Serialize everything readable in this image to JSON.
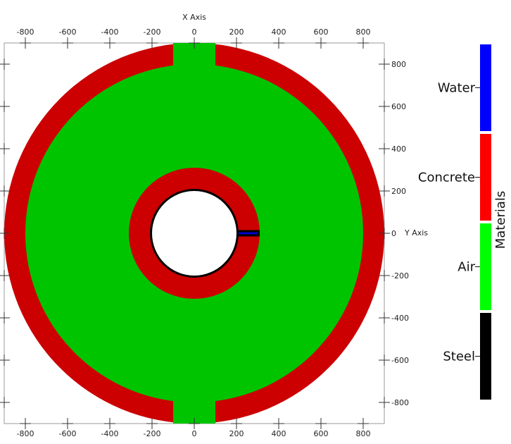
{
  "axes": {
    "x_title": "X Axis",
    "y_title": "Y Axis",
    "x_ticks": [
      -800,
      -600,
      -400,
      -200,
      0,
      200,
      400,
      600,
      800
    ],
    "y_ticks": [
      800,
      600,
      400,
      200,
      0,
      -200,
      -400,
      -600,
      -800
    ],
    "x_tick_labels": [
      "-800",
      "-600",
      "-400",
      "-200",
      "0",
      "200",
      "400",
      "600",
      "800"
    ],
    "y_tick_labels": [
      "800",
      "600",
      "400",
      "200",
      "0",
      "-200",
      "-400",
      "-600",
      "-800"
    ],
    "x_range": [
      -900,
      900
    ],
    "y_range": [
      -900,
      900
    ]
  },
  "geometry": {
    "outer_shell": {
      "material": "Concrete",
      "outer_radius": 900,
      "inner_radius": 800
    },
    "fill_region": {
      "material": "Air",
      "radius": 800
    },
    "vertical_band": {
      "material": "Air",
      "x_min": -100,
      "x_max": 100
    },
    "inner_ring": {
      "material": "Concrete",
      "outer_radius": 310,
      "inner_radius": 210
    },
    "liner": {
      "material": "Steel",
      "radius": 210
    },
    "cavity": {
      "radius": 200
    },
    "channel": {
      "material": "Water",
      "x_min": 200,
      "x_max": 310,
      "y_min": -15,
      "y_max": 15
    }
  },
  "legend": {
    "title": "Materials",
    "items": [
      {
        "label": "Water",
        "color": "#0000ff"
      },
      {
        "label": "Concrete",
        "color": "#ff0000"
      },
      {
        "label": "Air",
        "color": "#00ff00"
      },
      {
        "label": "Steel",
        "color": "#000000"
      }
    ]
  },
  "colors": {
    "concrete_render": "#cc0000",
    "air_render": "#00c400",
    "steel_render": "#000000",
    "water_render": "#0000cc",
    "cavity": "#ffffff"
  }
}
